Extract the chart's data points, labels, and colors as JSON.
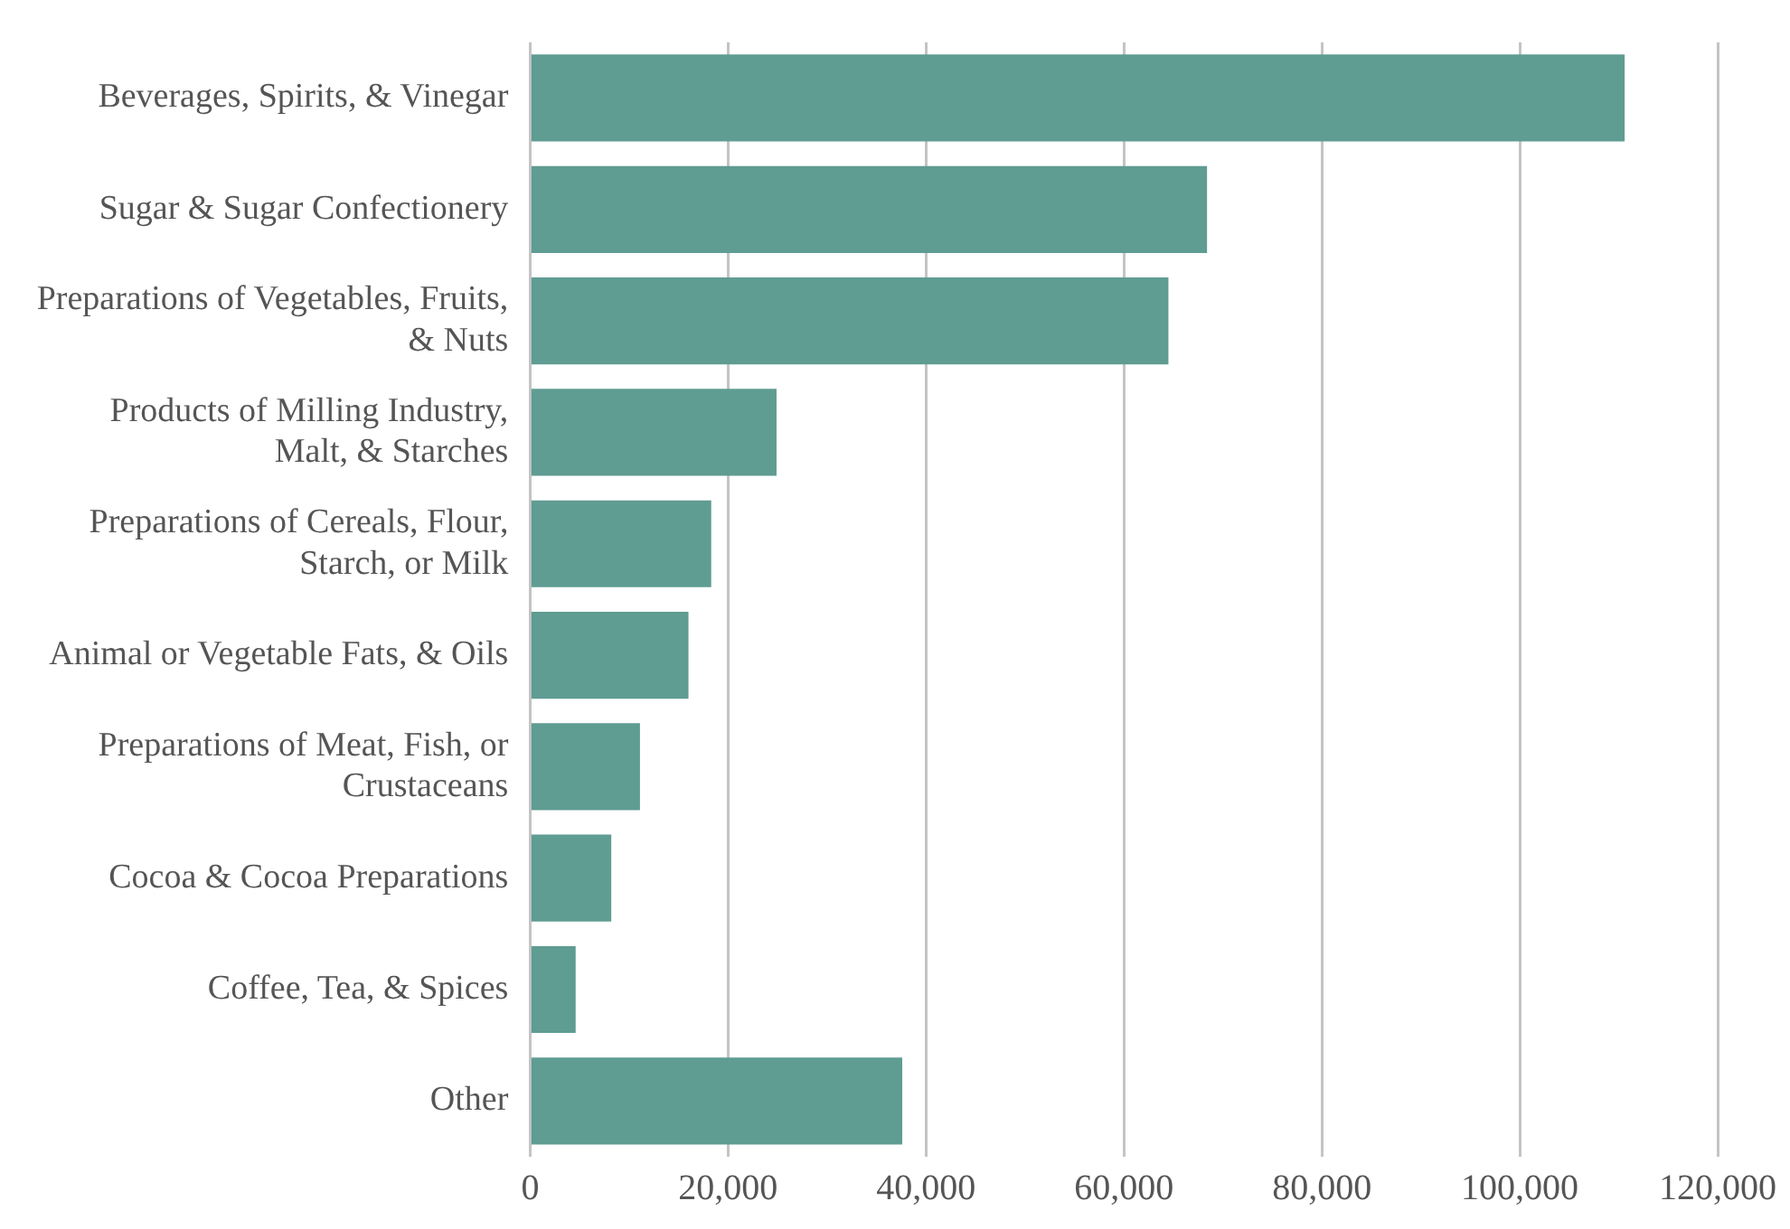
{
  "chart_data": {
    "type": "bar",
    "orientation": "horizontal",
    "categories": [
      "Beverages, Spirits, & Vinegar",
      "Sugar & Sugar Confectionery",
      "Preparations of Vegetables, Fruits, & Nuts",
      "Products of Milling Industry, Malt, & Starches",
      "Preparations of Cereals, Flour, Starch, or Milk",
      "Animal or Vegetable Fats, & Oils",
      "Preparations of Meat, Fish, or Crustaceans",
      "Cocoa & Cocoa Preparations",
      "Coffee, Tea, & Spices",
      "Other"
    ],
    "values": [
      110600,
      68400,
      64500,
      24900,
      18300,
      16000,
      11100,
      8200,
      4600,
      37600
    ],
    "color": "#5f9c92",
    "xlim": [
      0,
      120000
    ],
    "xticks": [
      0,
      {
        "value": 20000,
        "label": "20,000"
      },
      {
        "value": 40000,
        "label": "40,000"
      },
      {
        "value": 60000,
        "label": "60,000"
      },
      {
        "value": 80000,
        "label": "80,000"
      },
      {
        "value": 100000,
        "label": "100,000"
      },
      {
        "value": 120000,
        "label": "120,000"
      }
    ],
    "grid": "x",
    "legend": false
  }
}
